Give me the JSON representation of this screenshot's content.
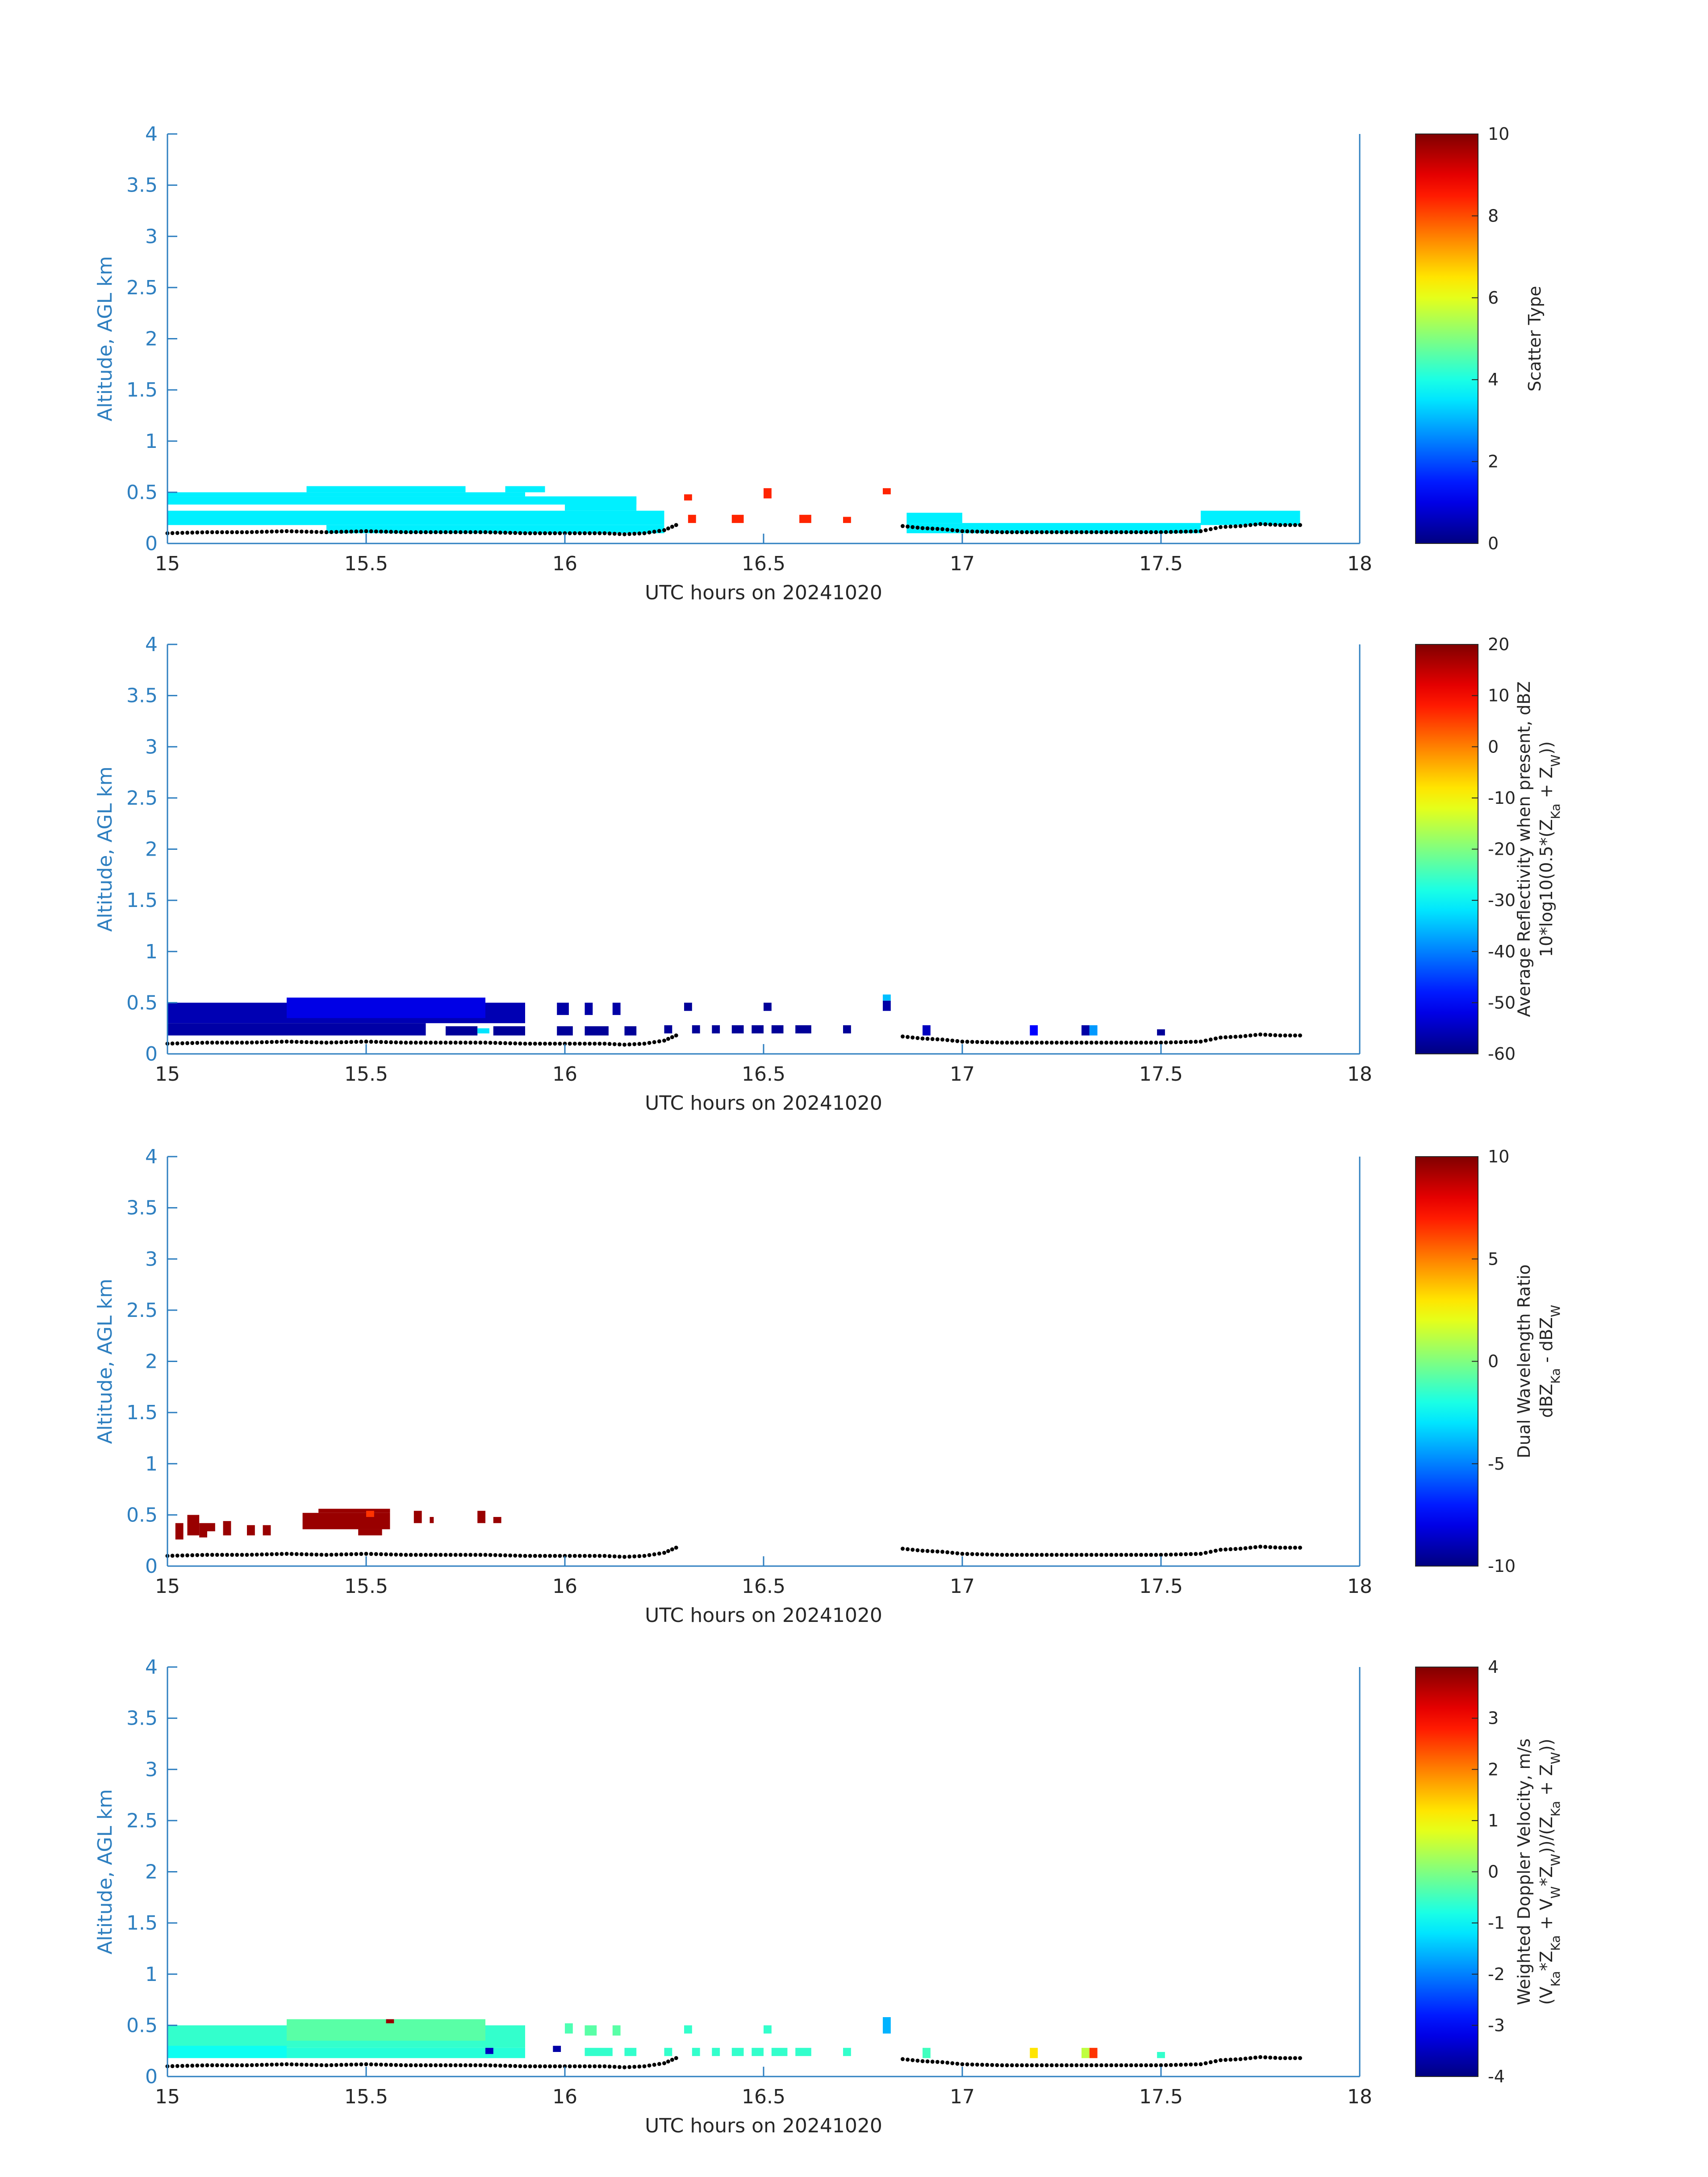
{
  "figure": {
    "xlabel": "UTC hours on 20241020",
    "ylabel": "Altitude, AGL km"
  },
  "chart_data": [
    {
      "type": "heatmap",
      "name": "scatter-type",
      "xlabel": "UTC hours on 20241020",
      "ylabel": "Altitude, AGL km",
      "xlim": [
        15,
        18
      ],
      "ylim": [
        0,
        4
      ],
      "xticks": [
        "15",
        "15.5",
        "16",
        "16.5",
        "17",
        "17.5",
        "18"
      ],
      "yticks": [
        "0",
        "0.5",
        "1",
        "1.5",
        "2",
        "2.5",
        "3",
        "3.5",
        "4"
      ],
      "colorbar": {
        "label": "Scatter Type",
        "label_lines": [
          "Scatter Type"
        ],
        "min": 0,
        "max": 10,
        "ticks": [
          "0",
          "2",
          "4",
          "6",
          "8",
          "10"
        ]
      },
      "cells": [
        {
          "x0": 15.0,
          "x1": 16.18,
          "y0": 0.38,
          "y1": 0.46,
          "v": 3.6
        },
        {
          "x0": 15.0,
          "x1": 15.9,
          "y0": 0.46,
          "y1": 0.5,
          "v": 3.6
        },
        {
          "x0": 15.35,
          "x1": 15.75,
          "y0": 0.5,
          "y1": 0.56,
          "v": 3.6
        },
        {
          "x0": 15.0,
          "x1": 16.25,
          "y0": 0.18,
          "y1": 0.32,
          "v": 3.6
        },
        {
          "x0": 15.4,
          "x1": 16.25,
          "y0": 0.1,
          "y1": 0.18,
          "v": 3.6
        },
        {
          "x0": 16.0,
          "x1": 16.18,
          "y0": 0.32,
          "y1": 0.46,
          "v": 3.6
        },
        {
          "x0": 15.85,
          "x1": 15.95,
          "y0": 0.5,
          "y1": 0.56,
          "v": 3.6
        },
        {
          "x0": 16.3,
          "x1": 16.32,
          "y0": 0.42,
          "y1": 0.48,
          "v": 8.4
        },
        {
          "x0": 16.31,
          "x1": 16.33,
          "y0": 0.2,
          "y1": 0.28,
          "v": 8.4
        },
        {
          "x0": 16.42,
          "x1": 16.45,
          "y0": 0.2,
          "y1": 0.28,
          "v": 8.4
        },
        {
          "x0": 16.5,
          "x1": 16.52,
          "y0": 0.44,
          "y1": 0.54,
          "v": 8.4
        },
        {
          "x0": 16.59,
          "x1": 16.62,
          "y0": 0.2,
          "y1": 0.28,
          "v": 8.4
        },
        {
          "x0": 16.7,
          "x1": 16.72,
          "y0": 0.2,
          "y1": 0.26,
          "v": 8.4
        },
        {
          "x0": 16.8,
          "x1": 16.82,
          "y0": 0.48,
          "y1": 0.54,
          "v": 8.4
        },
        {
          "x0": 16.86,
          "x1": 17.6,
          "y0": 0.1,
          "y1": 0.2,
          "v": 3.6
        },
        {
          "x0": 16.86,
          "x1": 17.0,
          "y0": 0.2,
          "y1": 0.3,
          "v": 3.6
        },
        {
          "x0": 17.6,
          "x1": 17.85,
          "y0": 0.18,
          "y1": 0.32,
          "v": 3.6
        }
      ]
    },
    {
      "type": "heatmap",
      "name": "reflectivity",
      "xlabel": "UTC hours on 20241020",
      "ylabel": "Altitude, AGL km",
      "xlim": [
        15,
        18
      ],
      "ylim": [
        0,
        4
      ],
      "xticks": [
        "15",
        "15.5",
        "16",
        "16.5",
        "17",
        "17.5",
        "18"
      ],
      "yticks": [
        "0",
        "0.5",
        "1",
        "1.5",
        "2",
        "2.5",
        "3",
        "3.5",
        "4"
      ],
      "colorbar": {
        "label": "Average Reflectivity when present, dBZ 10*log10(0.5*(Z_Ka + Z_W))",
        "label_lines": [
          "Average Reflectivity when present, dBZ",
          "10*log10(0.5*(Z",
          "Ka",
          " + Z",
          "W",
          "))"
        ],
        "min": -60,
        "max": 20,
        "ticks": [
          "-60",
          "-50",
          "-40",
          "-30",
          "-20",
          "-10",
          "0",
          "10",
          "20"
        ]
      },
      "cells": [
        {
          "x0": 15.0,
          "x1": 15.9,
          "y0": 0.3,
          "y1": 0.5,
          "v": -56
        },
        {
          "x0": 15.3,
          "x1": 15.8,
          "y0": 0.35,
          "y1": 0.55,
          "v": -52
        },
        {
          "x0": 15.0,
          "x1": 15.2,
          "y0": 0.18,
          "y1": 0.3,
          "v": -57
        },
        {
          "x0": 15.2,
          "x1": 15.5,
          "y0": 0.18,
          "y1": 0.3,
          "v": -57
        },
        {
          "x0": 15.5,
          "x1": 15.65,
          "y0": 0.18,
          "y1": 0.3,
          "v": -57
        },
        {
          "x0": 15.7,
          "x1": 15.78,
          "y0": 0.18,
          "y1": 0.27,
          "v": -58
        },
        {
          "x0": 15.82,
          "x1": 15.9,
          "y0": 0.18,
          "y1": 0.27,
          "v": -58
        },
        {
          "x0": 15.78,
          "x1": 15.81,
          "y0": 0.2,
          "y1": 0.25,
          "v": -32
        },
        {
          "x0": 15.98,
          "x1": 16.02,
          "y0": 0.18,
          "y1": 0.27,
          "v": -58
        },
        {
          "x0": 16.05,
          "x1": 16.11,
          "y0": 0.18,
          "y1": 0.27,
          "v": -58
        },
        {
          "x0": 16.15,
          "x1": 16.18,
          "y0": 0.18,
          "y1": 0.27,
          "v": -58
        },
        {
          "x0": 15.98,
          "x1": 16.01,
          "y0": 0.38,
          "y1": 0.5,
          "v": -57
        },
        {
          "x0": 16.05,
          "x1": 16.07,
          "y0": 0.38,
          "y1": 0.5,
          "v": -57
        },
        {
          "x0": 16.12,
          "x1": 16.14,
          "y0": 0.38,
          "y1": 0.5,
          "v": -57
        },
        {
          "x0": 16.25,
          "x1": 16.27,
          "y0": 0.2,
          "y1": 0.28,
          "v": -58
        },
        {
          "x0": 16.3,
          "x1": 16.32,
          "y0": 0.42,
          "y1": 0.5,
          "v": -58
        },
        {
          "x0": 16.32,
          "x1": 16.34,
          "y0": 0.2,
          "y1": 0.28,
          "v": -58
        },
        {
          "x0": 16.37,
          "x1": 16.39,
          "y0": 0.2,
          "y1": 0.28,
          "v": -58
        },
        {
          "x0": 16.42,
          "x1": 16.45,
          "y0": 0.2,
          "y1": 0.28,
          "v": -58
        },
        {
          "x0": 16.47,
          "x1": 16.5,
          "y0": 0.2,
          "y1": 0.28,
          "v": -58
        },
        {
          "x0": 16.5,
          "x1": 16.52,
          "y0": 0.42,
          "y1": 0.5,
          "v": -58
        },
        {
          "x0": 16.52,
          "x1": 16.55,
          "y0": 0.2,
          "y1": 0.28,
          "v": -58
        },
        {
          "x0": 16.58,
          "x1": 16.62,
          "y0": 0.2,
          "y1": 0.28,
          "v": -58
        },
        {
          "x0": 16.7,
          "x1": 16.72,
          "y0": 0.2,
          "y1": 0.28,
          "v": -58
        },
        {
          "x0": 16.8,
          "x1": 16.82,
          "y0": 0.42,
          "y1": 0.52,
          "v": -57
        },
        {
          "x0": 16.8,
          "x1": 16.82,
          "y0": 0.52,
          "y1": 0.58,
          "v": -35
        },
        {
          "x0": 16.9,
          "x1": 16.92,
          "y0": 0.18,
          "y1": 0.28,
          "v": -55
        },
        {
          "x0": 17.17,
          "x1": 17.19,
          "y0": 0.18,
          "y1": 0.28,
          "v": -50
        },
        {
          "x0": 17.3,
          "x1": 17.32,
          "y0": 0.18,
          "y1": 0.28,
          "v": -57
        },
        {
          "x0": 17.32,
          "x1": 17.34,
          "y0": 0.18,
          "y1": 0.28,
          "v": -38
        },
        {
          "x0": 17.49,
          "x1": 17.51,
          "y0": 0.18,
          "y1": 0.24,
          "v": -58
        }
      ]
    },
    {
      "type": "heatmap",
      "name": "dual-wavelength-ratio",
      "xlabel": "UTC hours on 20241020",
      "ylabel": "Altitude, AGL km",
      "xlim": [
        15,
        18
      ],
      "ylim": [
        0,
        4
      ],
      "xticks": [
        "15",
        "15.5",
        "16",
        "16.5",
        "17",
        "17.5",
        "18"
      ],
      "yticks": [
        "0",
        "0.5",
        "1",
        "1.5",
        "2",
        "2.5",
        "3",
        "3.5",
        "4"
      ],
      "colorbar": {
        "label": "Dual Wavelength Ratio dBZ_Ka - dBZ_W",
        "label_lines": [
          "Dual Wavelength Ratio",
          "dBZ",
          "Ka",
          " - dBZ",
          "W"
        ],
        "min": -10,
        "max": 10,
        "ticks": [
          "-10",
          "-5",
          "0",
          "5",
          "10"
        ]
      },
      "cells": [
        {
          "x0": 15.02,
          "x1": 15.04,
          "y0": 0.26,
          "y1": 0.42,
          "v": 9.5
        },
        {
          "x0": 15.05,
          "x1": 15.08,
          "y0": 0.3,
          "y1": 0.5,
          "v": 9.5
        },
        {
          "x0": 15.08,
          "x1": 15.1,
          "y0": 0.28,
          "y1": 0.42,
          "v": 9.5
        },
        {
          "x0": 15.1,
          "x1": 15.12,
          "y0": 0.34,
          "y1": 0.42,
          "v": 9.5
        },
        {
          "x0": 15.14,
          "x1": 15.16,
          "y0": 0.3,
          "y1": 0.44,
          "v": 9.5
        },
        {
          "x0": 15.2,
          "x1": 15.22,
          "y0": 0.3,
          "y1": 0.4,
          "v": 9.5
        },
        {
          "x0": 15.24,
          "x1": 15.26,
          "y0": 0.3,
          "y1": 0.4,
          "v": 9.5
        },
        {
          "x0": 15.34,
          "x1": 15.56,
          "y0": 0.36,
          "y1": 0.52,
          "v": 9.5
        },
        {
          "x0": 15.38,
          "x1": 15.56,
          "y0": 0.52,
          "y1": 0.56,
          "v": 9.5
        },
        {
          "x0": 15.48,
          "x1": 15.54,
          "y0": 0.3,
          "y1": 0.36,
          "v": 9.5
        },
        {
          "x0": 15.5,
          "x1": 15.52,
          "y0": 0.48,
          "y1": 0.54,
          "v": 6.5
        },
        {
          "x0": 15.62,
          "x1": 15.64,
          "y0": 0.42,
          "y1": 0.54,
          "v": 9.5
        },
        {
          "x0": 15.66,
          "x1": 15.67,
          "y0": 0.42,
          "y1": 0.48,
          "v": 9.5
        },
        {
          "x0": 15.78,
          "x1": 15.8,
          "y0": 0.42,
          "y1": 0.54,
          "v": 9.5
        },
        {
          "x0": 15.82,
          "x1": 15.84,
          "y0": 0.42,
          "y1": 0.48,
          "v": 9.5
        }
      ]
    },
    {
      "type": "heatmap",
      "name": "doppler-velocity",
      "xlabel": "UTC hours on 20241020",
      "ylabel": "Altitude, AGL km",
      "xlim": [
        15,
        18
      ],
      "ylim": [
        0,
        4
      ],
      "xticks": [
        "15",
        "15.5",
        "16",
        "16.5",
        "17",
        "17.5",
        "18"
      ],
      "yticks": [
        "0",
        "0.5",
        "1",
        "1.5",
        "2",
        "2.5",
        "3",
        "3.5",
        "4"
      ],
      "colorbar": {
        "label": "Weighted Doppler Velocity, m/s (V_Ka*Z_Ka + V_W*Z_W)/(Z_Ka + Z_W))",
        "label_lines": [
          "Weighted Doppler Velocity, m/s",
          "(V",
          "Ka",
          "*Z",
          "Ka",
          " + V",
          "W",
          "*Z",
          "W",
          "))/(Z",
          "Ka",
          " + Z",
          "W",
          "))"
        ],
        "min": -4,
        "max": 4,
        "ticks": [
          "-4",
          "-3",
          "-2",
          "-1",
          "0",
          "1",
          "2",
          "3",
          "4"
        ]
      },
      "cells": [
        {
          "x0": 15.0,
          "x1": 15.9,
          "y0": 0.28,
          "y1": 0.5,
          "v": -0.6
        },
        {
          "x0": 15.3,
          "x1": 15.8,
          "y0": 0.35,
          "y1": 0.56,
          "v": -0.3
        },
        {
          "x0": 15.0,
          "x1": 15.3,
          "y0": 0.18,
          "y1": 0.3,
          "v": -0.9
        },
        {
          "x0": 15.3,
          "x1": 15.9,
          "y0": 0.18,
          "y1": 0.28,
          "v": -0.7
        },
        {
          "x0": 15.55,
          "x1": 15.57,
          "y0": 0.52,
          "y1": 0.56,
          "v": 3.8
        },
        {
          "x0": 15.8,
          "x1": 15.82,
          "y0": 0.22,
          "y1": 0.28,
          "v": -3.5
        },
        {
          "x0": 15.97,
          "x1": 15.99,
          "y0": 0.24,
          "y1": 0.3,
          "v": -3.7
        },
        {
          "x0": 16.0,
          "x1": 16.02,
          "y0": 0.42,
          "y1": 0.52,
          "v": -0.4
        },
        {
          "x0": 16.05,
          "x1": 16.12,
          "y0": 0.2,
          "y1": 0.28,
          "v": -0.6
        },
        {
          "x0": 16.05,
          "x1": 16.08,
          "y0": 0.4,
          "y1": 0.5,
          "v": -0.3
        },
        {
          "x0": 16.12,
          "x1": 16.14,
          "y0": 0.4,
          "y1": 0.5,
          "v": -0.3
        },
        {
          "x0": 16.15,
          "x1": 16.18,
          "y0": 0.2,
          "y1": 0.28,
          "v": -0.6
        },
        {
          "x0": 16.25,
          "x1": 16.27,
          "y0": 0.2,
          "y1": 0.28,
          "v": -0.6
        },
        {
          "x0": 16.3,
          "x1": 16.32,
          "y0": 0.42,
          "y1": 0.5,
          "v": -0.6
        },
        {
          "x0": 16.32,
          "x1": 16.34,
          "y0": 0.2,
          "y1": 0.28,
          "v": -0.6
        },
        {
          "x0": 16.37,
          "x1": 16.39,
          "y0": 0.2,
          "y1": 0.28,
          "v": -0.6
        },
        {
          "x0": 16.42,
          "x1": 16.45,
          "y0": 0.2,
          "y1": 0.28,
          "v": -0.6
        },
        {
          "x0": 16.47,
          "x1": 16.5,
          "y0": 0.2,
          "y1": 0.28,
          "v": -0.6
        },
        {
          "x0": 16.5,
          "x1": 16.52,
          "y0": 0.42,
          "y1": 0.5,
          "v": -0.6
        },
        {
          "x0": 16.52,
          "x1": 16.56,
          "y0": 0.2,
          "y1": 0.28,
          "v": -0.6
        },
        {
          "x0": 16.58,
          "x1": 16.62,
          "y0": 0.2,
          "y1": 0.28,
          "v": -0.6
        },
        {
          "x0": 16.7,
          "x1": 16.72,
          "y0": 0.2,
          "y1": 0.28,
          "v": -0.6
        },
        {
          "x0": 16.8,
          "x1": 16.82,
          "y0": 0.42,
          "y1": 0.58,
          "v": -1.6
        },
        {
          "x0": 16.9,
          "x1": 16.92,
          "y0": 0.18,
          "y1": 0.28,
          "v": -0.5
        },
        {
          "x0": 17.17,
          "x1": 17.19,
          "y0": 0.18,
          "y1": 0.28,
          "v": 1.2
        },
        {
          "x0": 17.3,
          "x1": 17.32,
          "y0": 0.18,
          "y1": 0.28,
          "v": 0.5
        },
        {
          "x0": 17.32,
          "x1": 17.34,
          "y0": 0.18,
          "y1": 0.28,
          "v": 2.6
        },
        {
          "x0": 17.49,
          "x1": 17.51,
          "y0": 0.18,
          "y1": 0.24,
          "v": -0.6
        }
      ]
    }
  ],
  "surface_track": {
    "note_series": "black dotted line near ground level",
    "points": [
      [
        15.0,
        0.1
      ],
      [
        15.1,
        0.11
      ],
      [
        15.2,
        0.11
      ],
      [
        15.3,
        0.12
      ],
      [
        15.4,
        0.11
      ],
      [
        15.5,
        0.12
      ],
      [
        15.6,
        0.11
      ],
      [
        15.7,
        0.11
      ],
      [
        15.8,
        0.11
      ],
      [
        15.9,
        0.1
      ],
      [
        16.0,
        0.1
      ],
      [
        16.1,
        0.1
      ],
      [
        16.15,
        0.09
      ],
      [
        16.2,
        0.1
      ],
      [
        16.25,
        0.13
      ],
      [
        16.28,
        0.18
      ]
    ],
    "points2": [
      [
        16.85,
        0.17
      ],
      [
        16.9,
        0.15
      ],
      [
        16.95,
        0.14
      ],
      [
        17.0,
        0.12
      ],
      [
        17.1,
        0.11
      ],
      [
        17.2,
        0.11
      ],
      [
        17.3,
        0.11
      ],
      [
        17.4,
        0.11
      ],
      [
        17.5,
        0.11
      ],
      [
        17.6,
        0.12
      ],
      [
        17.65,
        0.16
      ],
      [
        17.7,
        0.17
      ],
      [
        17.75,
        0.19
      ],
      [
        17.8,
        0.18
      ],
      [
        17.85,
        0.18
      ]
    ]
  }
}
